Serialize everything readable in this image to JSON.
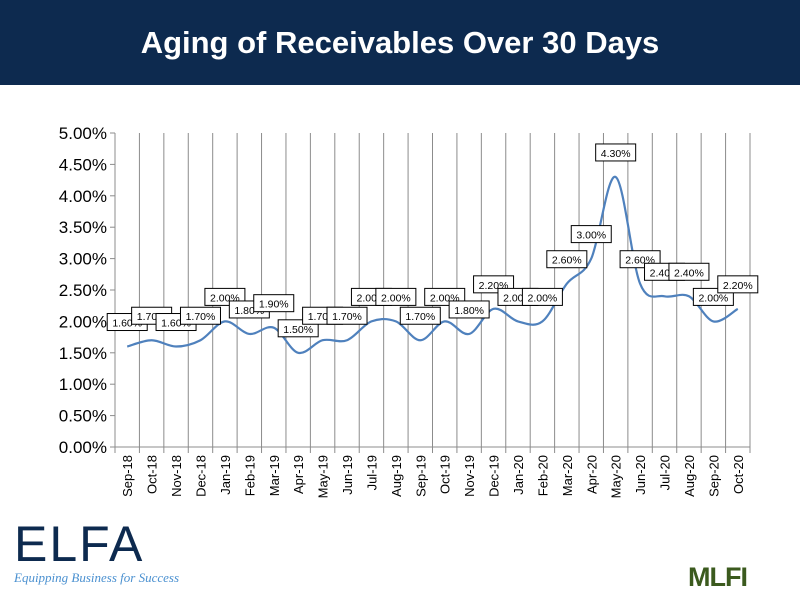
{
  "header": {
    "title": "Aging of Receivables Over 30 Days"
  },
  "logos": {
    "elfa": "ELFA",
    "elfa_tagline": "Equipping Business for Success",
    "mlfi": "MLFI"
  },
  "chart_data": {
    "type": "line",
    "title": "",
    "xlabel": "",
    "ylabel": "",
    "categories": [
      "Sep-18",
      "Oct-18",
      "Nov-18",
      "Dec-18",
      "Jan-19",
      "Feb-19",
      "Mar-19",
      "Apr-19",
      "May-19",
      "Jun-19",
      "Jul-19",
      "Aug-19",
      "Sep-19",
      "Oct-19",
      "Nov-19",
      "Dec-19",
      "Jan-20",
      "Feb-20",
      "Mar-20",
      "Apr-20",
      "May-20",
      "Jun-20",
      "Jul-20",
      "Aug-20",
      "Sep-20",
      "Oct-20"
    ],
    "values": [
      1.6,
      1.7,
      1.6,
      1.7,
      2.0,
      1.8,
      1.9,
      1.5,
      1.7,
      1.7,
      2.0,
      2.0,
      1.7,
      2.0,
      1.8,
      2.2,
      2.0,
      2.0,
      2.6,
      3.0,
      4.3,
      2.6,
      2.4,
      2.4,
      2.0,
      2.2
    ],
    "data_labels": [
      "1.60%",
      "1.70%",
      "1.60%",
      "1.70%",
      "2.00%",
      "1.80%",
      "1.90%",
      "1.50%",
      "1.70%",
      "1.70%",
      "2.00%",
      "2.00%",
      "1.70%",
      "2.00%",
      "1.80%",
      "2.20%",
      "2.00%",
      "2.00%",
      "2.60%",
      "3.00%",
      "4.30%",
      "2.60%",
      "2.40%",
      "2.40%",
      "2.00%",
      "2.20%"
    ],
    "ylim": [
      0,
      5
    ],
    "yticks": [
      "0.00%",
      "0.50%",
      "1.00%",
      "1.50%",
      "2.00%",
      "2.50%",
      "3.00%",
      "3.50%",
      "4.00%",
      "4.50%",
      "5.00%"
    ],
    "smooth": true,
    "grid": "vertical",
    "line_color": "#4f81bd"
  }
}
